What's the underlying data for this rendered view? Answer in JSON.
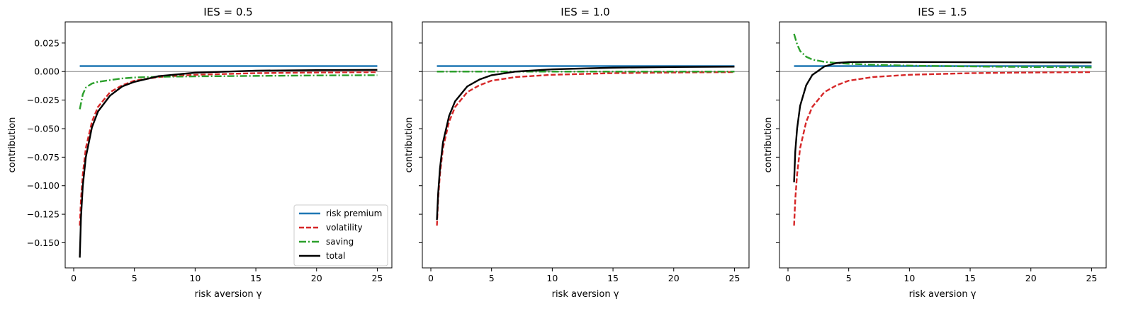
{
  "chart_data": [
    {
      "type": "line",
      "title": "IES = 0.5",
      "xlabel": "risk aversion γ",
      "ylabel": "contribution",
      "xlim": [
        -0.7,
        26.2
      ],
      "ylim": [
        -0.172,
        0.0435
      ],
      "xticks": [
        0,
        5,
        10,
        15,
        20,
        25
      ],
      "yticks": [
        -0.15,
        -0.125,
        -0.1,
        -0.075,
        -0.05,
        -0.025,
        0.0,
        0.025
      ],
      "ytick_labels": [
        "−0.150",
        "−0.125",
        "−0.100",
        "−0.075",
        "−0.050",
        "−0.025",
        "0.000",
        "0.025"
      ],
      "show_ytick_labels": true,
      "hline": 0,
      "grid": false,
      "legend": "lower-right",
      "series": [
        {
          "name": "risk premium",
          "color": "#1f77b4",
          "style": "solid",
          "x": [
            0.5,
            1,
            2,
            3,
            5,
            10,
            15,
            20,
            25
          ],
          "y": [
            0.0048,
            0.0048,
            0.0048,
            0.0048,
            0.0048,
            0.0048,
            0.0048,
            0.0048,
            0.0048
          ]
        },
        {
          "name": "volatility",
          "color": "#d62728",
          "style": "dashed",
          "x": [
            0.5,
            0.6,
            0.75,
            1,
            1.5,
            2,
            3,
            4,
            5,
            7,
            10,
            15,
            20,
            25
          ],
          "y": [
            -0.135,
            -0.112,
            -0.09,
            -0.067,
            -0.044,
            -0.031,
            -0.018,
            -0.012,
            -0.008,
            -0.0048,
            -0.0028,
            -0.0014,
            -0.0008,
            -0.0005
          ]
        },
        {
          "name": "saving",
          "color": "#2ca02c",
          "style": "dashdot",
          "x": [
            0.5,
            0.75,
            1,
            1.5,
            2,
            3,
            4,
            5,
            7,
            10,
            15,
            20,
            25
          ],
          "y": [
            -0.033,
            -0.02,
            -0.014,
            -0.0105,
            -0.009,
            -0.0075,
            -0.006,
            -0.0052,
            -0.0046,
            -0.0042,
            -0.0038,
            -0.0034,
            -0.0032
          ]
        },
        {
          "name": "total",
          "color": "#000000",
          "style": "solid",
          "x": [
            0.5,
            0.6,
            0.75,
            1,
            1.5,
            2,
            3,
            4,
            5,
            7,
            10,
            15,
            20,
            25
          ],
          "y": [
            -0.163,
            -0.128,
            -0.1,
            -0.075,
            -0.049,
            -0.035,
            -0.021,
            -0.013,
            -0.009,
            -0.004,
            -0.001,
            0.0008,
            0.0013,
            0.0015
          ]
        }
      ]
    },
    {
      "type": "line",
      "title": "IES = 1.0",
      "xlabel": "risk aversion γ",
      "ylabel": "contribution",
      "xlim": [
        -0.7,
        26.2
      ],
      "ylim": [
        -0.172,
        0.0435
      ],
      "xticks": [
        0,
        5,
        10,
        15,
        20,
        25
      ],
      "yticks": [
        -0.15,
        -0.125,
        -0.1,
        -0.075,
        -0.05,
        -0.025,
        0.0,
        0.025
      ],
      "show_ytick_labels": false,
      "hline": 0,
      "grid": false,
      "series": [
        {
          "name": "risk premium",
          "color": "#1f77b4",
          "style": "solid",
          "x": [
            0.5,
            1,
            2,
            3,
            5,
            10,
            15,
            20,
            25
          ],
          "y": [
            0.0048,
            0.0048,
            0.0048,
            0.0048,
            0.0048,
            0.0048,
            0.0048,
            0.0048,
            0.0048
          ]
        },
        {
          "name": "volatility",
          "color": "#d62728",
          "style": "dashed",
          "x": [
            0.5,
            0.6,
            0.75,
            1,
            1.5,
            2,
            3,
            4,
            5,
            7,
            10,
            15,
            20,
            25
          ],
          "y": [
            -0.135,
            -0.112,
            -0.09,
            -0.067,
            -0.044,
            -0.031,
            -0.018,
            -0.012,
            -0.008,
            -0.0048,
            -0.0028,
            -0.0014,
            -0.0008,
            -0.0005
          ]
        },
        {
          "name": "saving",
          "color": "#2ca02c",
          "style": "dashdot",
          "x": [
            0.5,
            25
          ],
          "y": [
            0.0,
            0.0
          ]
        },
        {
          "name": "total",
          "color": "#000000",
          "style": "solid",
          "x": [
            0.5,
            0.6,
            0.75,
            1,
            1.5,
            2,
            3,
            4,
            5,
            7,
            10,
            15,
            20,
            25
          ],
          "y": [
            -0.13,
            -0.107,
            -0.085,
            -0.062,
            -0.039,
            -0.026,
            -0.013,
            -0.007,
            -0.0032,
            0.0,
            0.002,
            0.0034,
            0.004,
            0.0043
          ]
        }
      ]
    },
    {
      "type": "line",
      "title": "IES = 1.5",
      "xlabel": "risk aversion γ",
      "ylabel": "contribution",
      "xlim": [
        -0.7,
        26.2
      ],
      "ylim": [
        -0.172,
        0.0435
      ],
      "xticks": [
        0,
        5,
        10,
        15,
        20,
        25
      ],
      "yticks": [
        -0.15,
        -0.125,
        -0.1,
        -0.075,
        -0.05,
        -0.025,
        0.0,
        0.025
      ],
      "show_ytick_labels": false,
      "hline": 0,
      "grid": false,
      "series": [
        {
          "name": "risk premium",
          "color": "#1f77b4",
          "style": "solid",
          "x": [
            0.5,
            1,
            2,
            3,
            5,
            10,
            15,
            20,
            25
          ],
          "y": [
            0.0048,
            0.0048,
            0.0048,
            0.0048,
            0.0048,
            0.0048,
            0.0048,
            0.0048,
            0.0048
          ]
        },
        {
          "name": "volatility",
          "color": "#d62728",
          "style": "dashed",
          "x": [
            0.5,
            0.6,
            0.75,
            1,
            1.5,
            2,
            3,
            4,
            5,
            7,
            10,
            15,
            20,
            25
          ],
          "y": [
            -0.135,
            -0.112,
            -0.09,
            -0.067,
            -0.044,
            -0.031,
            -0.018,
            -0.012,
            -0.008,
            -0.0048,
            -0.0028,
            -0.0014,
            -0.0008,
            -0.0005
          ]
        },
        {
          "name": "saving",
          "color": "#2ca02c",
          "style": "dashdot",
          "x": [
            0.5,
            0.75,
            1,
            1.5,
            2,
            3,
            4,
            5,
            7,
            10,
            15,
            20,
            25
          ],
          "y": [
            0.033,
            0.024,
            0.018,
            0.013,
            0.0105,
            0.0085,
            0.0075,
            0.0068,
            0.006,
            0.0052,
            0.0045,
            0.004,
            0.0037
          ]
        },
        {
          "name": "total",
          "color": "#000000",
          "style": "solid",
          "x": [
            0.5,
            0.6,
            0.75,
            1,
            1.5,
            2,
            3,
            4,
            5,
            7,
            10,
            15,
            20,
            25
          ],
          "y": [
            -0.097,
            -0.07,
            -0.05,
            -0.03,
            -0.012,
            -0.003,
            0.0045,
            0.0075,
            0.0083,
            0.0085,
            0.0084,
            0.0082,
            0.0081,
            0.008
          ]
        }
      ]
    }
  ]
}
